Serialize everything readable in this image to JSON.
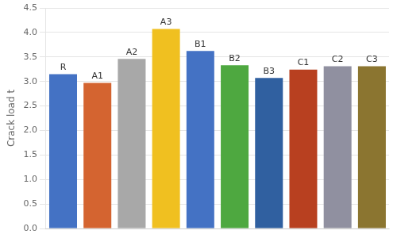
{
  "chart_data": {
    "type": "bar",
    "categories": [
      "R",
      "A1",
      "A2",
      "A3",
      "B1",
      "B2",
      "B3",
      "C1",
      "C2",
      "C3"
    ],
    "values": [
      3.15,
      2.97,
      3.46,
      4.07,
      3.62,
      3.33,
      3.07,
      3.24,
      3.31,
      3.31
    ],
    "colors": [
      "#4472C4",
      "#D46430",
      "#A8A8A8",
      "#F0C020",
      "#4472C4",
      "#4EA840",
      "#3060A0",
      "#B84020",
      "#9090A0",
      "#8B7530"
    ],
    "ylabel": "Crack load t",
    "ylim": [
      0,
      4.5
    ],
    "yticks": [
      {
        "value": 0,
        "label": "0.0"
      },
      0.5,
      {
        "value": 1,
        "label": "1.0"
      },
      1.5,
      {
        "value": 2,
        "label": "2.0"
      },
      2.5,
      {
        "value": 3,
        "label": "3.0"
      },
      3.5,
      {
        "value": 4,
        "label": "4.0"
      },
      4.5
    ],
    "grid": true,
    "tick_labels": "y"
  }
}
